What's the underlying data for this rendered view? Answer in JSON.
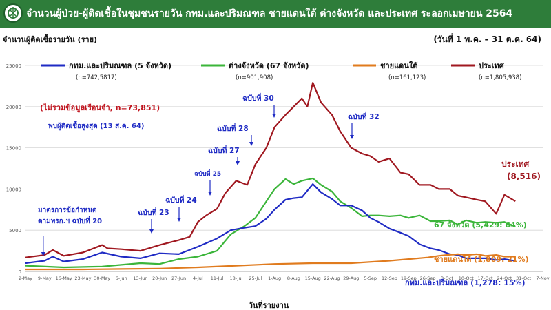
{
  "header": {
    "title": "จำนวนผู้ป่วย-ผู้ติดเชื้อในชุมชนรายวัน กทม.และปริมณฑล ชายแดนใต้ ต่างจังหวัด และประเทศ ระลอกเมษายน 2564"
  },
  "colors": {
    "header_bg": "#2e7d3a",
    "bangkok": "#1f2bc4",
    "provinces": "#3bb53a",
    "south": "#e07b1e",
    "nation": "#a01820",
    "annotation_red": "#c0141e",
    "annotation_blue": "#1f2bc4"
  },
  "chart_data": {
    "type": "line",
    "ylabel": "จำนวนผู้ติดเชื้อรายวัน (ราย)",
    "period": "(วันที่ 1 พ.ค. – 31 ต.ค. 64)",
    "xlabel": "วันที่รายงาน",
    "ylim": [
      0,
      25000
    ],
    "yticks": [
      "0",
      "5000",
      "10000",
      "15000",
      "20000",
      "25000"
    ],
    "xticks": [
      "2-May",
      "9-May",
      "16-May",
      "23-May",
      "30-May",
      "6-Jun",
      "13-Jun",
      "20-Jun",
      "27-Jun",
      "4-Jul",
      "11-Jul",
      "18-Jul",
      "25-Jul",
      "1-Aug",
      "8-Aug",
      "15-Aug",
      "22-Aug",
      "29-Aug",
      "5-Sep",
      "12-Sep",
      "19-Sep",
      "26-Sep",
      "3-Oct",
      "10-Oct",
      "17-Oct",
      "24-Oct",
      "31-Oct",
      "7-Nov"
    ],
    "legend": [
      {
        "name": "กทม.และปริมณฑล (5 จังหวัด)",
        "n": "(n=742,5817)",
        "key": "bangkok"
      },
      {
        "name": "ต่างจังหวัด (67 จังหวัด)",
        "n": "(n=901,908)",
        "key": "provinces"
      },
      {
        "name": "ชายแดนใต้",
        "n": "(n=161,123)",
        "key": "south"
      },
      {
        "name": "ประเทศ",
        "n": "(n=1,805,938)",
        "key": "nation"
      }
    ],
    "series": [
      {
        "key": "nation",
        "name": "ประเทศ",
        "points": [
          [
            0,
            1700
          ],
          [
            7,
            2000
          ],
          [
            10,
            2600
          ],
          [
            14,
            1900
          ],
          [
            21,
            2300
          ],
          [
            28,
            3200
          ],
          [
            30,
            2800
          ],
          [
            35,
            2700
          ],
          [
            42,
            2500
          ],
          [
            49,
            3200
          ],
          [
            56,
            3800
          ],
          [
            60,
            4200
          ],
          [
            63,
            6000
          ],
          [
            66,
            6800
          ],
          [
            70,
            7600
          ],
          [
            73,
            9500
          ],
          [
            77,
            11000
          ],
          [
            81,
            10500
          ],
          [
            84,
            13000
          ],
          [
            88,
            15000
          ],
          [
            91,
            17500
          ],
          [
            95,
            19000
          ],
          [
            98,
            20000
          ],
          [
            101,
            21000
          ],
          [
            103,
            20000
          ],
          [
            105,
            22900
          ],
          [
            108,
            20500
          ],
          [
            112,
            19000
          ],
          [
            115,
            17000
          ],
          [
            119,
            15000
          ],
          [
            123,
            14300
          ],
          [
            126,
            14000
          ],
          [
            129,
            13300
          ],
          [
            133,
            13700
          ],
          [
            137,
            12000
          ],
          [
            140,
            11800
          ],
          [
            144,
            10500
          ],
          [
            148,
            10500
          ],
          [
            151,
            10000
          ],
          [
            155,
            10000
          ],
          [
            158,
            9200
          ],
          [
            161,
            9000
          ],
          [
            165,
            8700
          ],
          [
            168,
            8500
          ],
          [
            172,
            7000
          ],
          [
            175,
            9300
          ],
          [
            179,
            8516
          ]
        ]
      },
      {
        "key": "provinces",
        "name": "ต่างจังหวัด (67 จังหวัด)",
        "points": [
          [
            0,
            700
          ],
          [
            14,
            500
          ],
          [
            28,
            600
          ],
          [
            35,
            800
          ],
          [
            42,
            1000
          ],
          [
            49,
            900
          ],
          [
            56,
            1500
          ],
          [
            63,
            1800
          ],
          [
            70,
            2500
          ],
          [
            75,
            4500
          ],
          [
            80,
            5500
          ],
          [
            84,
            6500
          ],
          [
            88,
            8500
          ],
          [
            91,
            10000
          ],
          [
            95,
            11200
          ],
          [
            98,
            10600
          ],
          [
            101,
            11000
          ],
          [
            105,
            11300
          ],
          [
            108,
            10500
          ],
          [
            112,
            9700
          ],
          [
            115,
            8500
          ],
          [
            119,
            7700
          ],
          [
            123,
            6700
          ],
          [
            126,
            6800
          ],
          [
            129,
            6800
          ],
          [
            133,
            6700
          ],
          [
            137,
            6800
          ],
          [
            140,
            6500
          ],
          [
            144,
            6800
          ],
          [
            148,
            6100
          ],
          [
            151,
            6100
          ],
          [
            155,
            6200
          ],
          [
            158,
            5700
          ],
          [
            161,
            6200
          ],
          [
            165,
            5900
          ],
          [
            168,
            6000
          ],
          [
            172,
            5900
          ],
          [
            175,
            6000
          ],
          [
            179,
            5429
          ]
        ]
      },
      {
        "key": "bangkok",
        "name": "กทม.และปริมณฑล (5 จังหวัด)",
        "points": [
          [
            0,
            1000
          ],
          [
            7,
            1300
          ],
          [
            10,
            1800
          ],
          [
            14,
            1200
          ],
          [
            21,
            1500
          ],
          [
            28,
            2300
          ],
          [
            35,
            1800
          ],
          [
            42,
            1600
          ],
          [
            49,
            2200
          ],
          [
            56,
            2100
          ],
          [
            63,
            3000
          ],
          [
            70,
            4000
          ],
          [
            75,
            5000
          ],
          [
            80,
            5300
          ],
          [
            84,
            5500
          ],
          [
            88,
            6400
          ],
          [
            91,
            7500
          ],
          [
            95,
            8700
          ],
          [
            98,
            8900
          ],
          [
            101,
            9000
          ],
          [
            105,
            10600
          ],
          [
            108,
            9600
          ],
          [
            112,
            8800
          ],
          [
            115,
            8000
          ],
          [
            119,
            8000
          ],
          [
            123,
            7400
          ],
          [
            126,
            6500
          ],
          [
            129,
            6000
          ],
          [
            133,
            5200
          ],
          [
            137,
            4700
          ],
          [
            140,
            4300
          ],
          [
            144,
            3300
          ],
          [
            148,
            2800
          ],
          [
            151,
            2600
          ],
          [
            155,
            2100
          ],
          [
            158,
            2000
          ],
          [
            161,
            1600
          ],
          [
            165,
            1600
          ],
          [
            168,
            1600
          ],
          [
            172,
            1400
          ],
          [
            175,
            1500
          ],
          [
            179,
            1278
          ]
        ]
      },
      {
        "key": "south",
        "name": "ชายแดนใต้",
        "points": [
          [
            0,
            250
          ],
          [
            21,
            250
          ],
          [
            35,
            300
          ],
          [
            49,
            350
          ],
          [
            63,
            500
          ],
          [
            77,
            700
          ],
          [
            91,
            900
          ],
          [
            105,
            1000
          ],
          [
            119,
            1000
          ],
          [
            133,
            1300
          ],
          [
            140,
            1500
          ],
          [
            147,
            1700
          ],
          [
            151,
            1900
          ],
          [
            154,
            2000
          ],
          [
            158,
            2100
          ],
          [
            161,
            2000
          ],
          [
            165,
            2100
          ],
          [
            168,
            1900
          ],
          [
            172,
            2000
          ],
          [
            175,
            1800
          ],
          [
            179,
            1809
          ]
        ]
      }
    ],
    "end_labels": {
      "nation": [
        "ประเทศ",
        "(8,516)"
      ],
      "provinces": "67 จังหวัด (5,429: 64%)",
      "south": "ชายแดนใต้ (1,809: 21%)",
      "bangkok": "กทม.และปริมณฑล (1,278: 15%)"
    },
    "annotations": {
      "exclude_prison": "(ไม่รวมข้อมูลเรือนจำ, n=73,851)",
      "peak_note": "พบผู้ติดเชื้อสูงสุด (13 ส.ค. 64)",
      "measure_line1": "มาตรการข้อกำหนด",
      "measure_line2": "ตามพรก.ฯ ฉบับที่ 20",
      "orders": [
        {
          "text": "ฉบับที่ 23",
          "day": 49
        },
        {
          "text": "ฉบับที่ 24",
          "day": 59
        },
        {
          "text": "ฉบับที่ 25",
          "day": 74
        },
        {
          "text": "ฉบับที่ 27",
          "day": 83
        },
        {
          "text": "ฉบับที่ 28",
          "day": 88
        },
        {
          "text": "ฉบับที่ 30",
          "day": 98
        },
        {
          "text": "ฉบับที่ 32",
          "day": 128
        }
      ]
    }
  }
}
